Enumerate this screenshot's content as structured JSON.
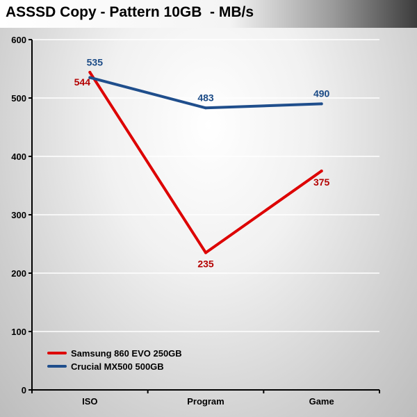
{
  "title": "ASSSD Copy - Pattern 10GB  - MB/s",
  "chart_data": {
    "type": "line",
    "title": "ASSSD Copy - Pattern 10GB  - MB/s",
    "categories": [
      "ISO",
      "Program",
      "Game"
    ],
    "ylim": [
      0,
      600
    ],
    "yticks": [
      0,
      100,
      200,
      300,
      400,
      500,
      600
    ],
    "grid": true,
    "legend_position": "bottom-left",
    "series": [
      {
        "name": "Samsung 860 EVO 250GB",
        "values": [
          544,
          235,
          375
        ],
        "color": "#dd0000",
        "label_color": "#b40000"
      },
      {
        "name": "Crucial MX500 500GB",
        "values": [
          535,
          483,
          490
        ],
        "color": "#1f4e8c",
        "label_color": "#1a4a86"
      }
    ]
  }
}
